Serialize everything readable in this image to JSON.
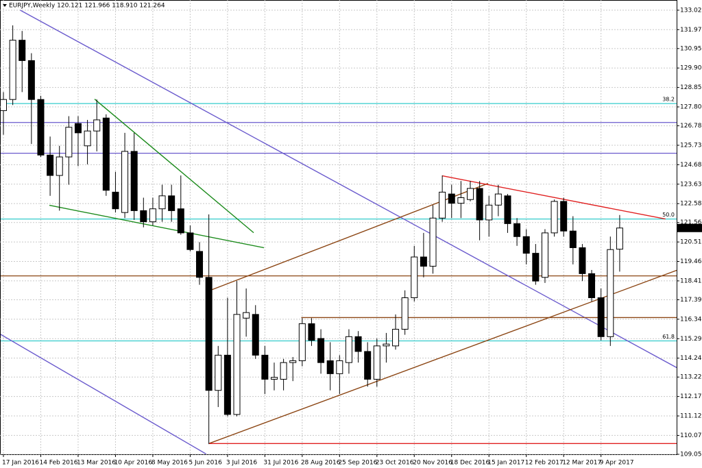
{
  "chart_data": {
    "type": "candlestick",
    "title": "EURJPY,Weekly 120.121 121.966 118.910 121.264",
    "categories": [
      "17 Jan 2016",
      null,
      null,
      null,
      "14 Feb 2016",
      null,
      null,
      null,
      "13 Mar 2016",
      null,
      null,
      null,
      "10 Apr 2016",
      null,
      null,
      null,
      "8 May 2016",
      null,
      null,
      null,
      "5 Jun 2016",
      null,
      null,
      null,
      "3 Jul 2016",
      null,
      null,
      null,
      "31 Jul 2016",
      null,
      null,
      null,
      "28 Aug 2016",
      null,
      null,
      null,
      "25 Sep 2016",
      null,
      null,
      null,
      "23 Oct 2016",
      null,
      null,
      null,
      "20 Nov 2016",
      null,
      null,
      null,
      "18 Dec 2016",
      null,
      null,
      null,
      "15 Jan 2017",
      null,
      null,
      null,
      "12 Feb 2017",
      null,
      null,
      null,
      "12 Mar 2017",
      null,
      null,
      null,
      "9 Apr 2017",
      null,
      null
    ],
    "open": [
      127.6,
      128.2,
      131.4,
      130.3,
      128.2,
      125.2,
      124.1,
      125.1,
      126.9,
      125.7,
      126.5,
      127.2,
      123.2,
      122.1,
      125.4,
      122.2,
      121.6,
      122.3,
      123.0,
      122.3,
      121.0,
      120.0,
      118.6,
      112.5,
      114.4,
      111.2,
      116.4,
      116.6,
      114.4,
      113.1,
      113.1,
      114.0,
      114.1,
      116.1,
      115.3,
      114.1,
      113.4,
      114.0,
      115.4,
      114.6,
      113.1,
      114.9,
      114.9,
      115.8,
      117.5,
      119.7,
      119.2,
      121.8,
      123.1,
      122.6,
      122.8,
      123.4,
      121.7,
      122.5,
      123.0,
      121.5,
      120.8,
      119.9,
      118.6,
      121.0,
      122.7,
      121.1,
      120.2,
      118.8,
      117.5,
      115.4,
      120.121
    ],
    "high": [
      128.6,
      132.2,
      131.9,
      130.7,
      128.4,
      126.2,
      125.7,
      127.3,
      127.3,
      127.1,
      128.2,
      127.4,
      124.3,
      126.4,
      126.4,
      122.9,
      122.9,
      123.6,
      123.6,
      124.1,
      121.4,
      120.5,
      122.0,
      114.9,
      117.5,
      118.4,
      118.0,
      117.1,
      114.9,
      114.0,
      114.2,
      114.3,
      116.4,
      116.4,
      115.8,
      115.1,
      114.4,
      115.8,
      115.7,
      115.1,
      115.3,
      115.6,
      116.6,
      117.9,
      120.3,
      121.0,
      122.5,
      124.1,
      123.6,
      123.8,
      123.8,
      123.8,
      123.0,
      123.6,
      123.1,
      121.8,
      121.2,
      120.4,
      121.2,
      122.8,
      122.9,
      121.9,
      120.4,
      119.0,
      118.0,
      120.8,
      121.966
    ],
    "low": [
      126.3,
      127.9,
      128.6,
      125.8,
      125.1,
      123.0,
      122.2,
      123.6,
      124.6,
      124.7,
      125.4,
      123.0,
      122.1,
      121.8,
      121.7,
      121.3,
      121.4,
      121.6,
      121.6,
      120.9,
      120.0,
      118.2,
      109.6,
      111.6,
      111.1,
      111.1,
      115.4,
      114.2,
      112.3,
      112.5,
      112.5,
      113.0,
      113.8,
      114.9,
      113.4,
      112.5,
      112.3,
      113.4,
      114.0,
      112.7,
      112.7,
      114.0,
      114.7,
      115.5,
      117.3,
      118.6,
      118.8,
      121.6,
      121.8,
      121.8,
      122.7,
      120.6,
      120.8,
      121.9,
      121.0,
      120.3,
      119.3,
      118.2,
      118.3,
      120.8,
      120.8,
      119.3,
      118.4,
      117.3,
      115.2,
      114.9,
      118.91
    ],
    "close": [
      128.2,
      131.4,
      130.3,
      128.2,
      125.2,
      124.1,
      125.1,
      126.7,
      126.4,
      126.5,
      127.1,
      123.3,
      122.3,
      125.4,
      122.2,
      121.6,
      122.3,
      123.0,
      122.2,
      121.0,
      120.1,
      118.6,
      112.5,
      114.4,
      111.2,
      116.6,
      116.7,
      114.4,
      113.1,
      113.2,
      114.0,
      114.1,
      116.1,
      115.2,
      114.0,
      113.4,
      114.1,
      115.4,
      114.6,
      113.1,
      114.9,
      115.0,
      115.8,
      117.5,
      119.7,
      119.2,
      121.8,
      123.2,
      122.6,
      122.9,
      123.4,
      121.7,
      122.5,
      123.1,
      121.5,
      120.8,
      119.9,
      118.4,
      121.0,
      122.7,
      121.1,
      120.2,
      118.8,
      117.5,
      115.4,
      120.1,
      121.264
    ],
    "current_price": 121.264,
    "ylim": [
      109.05,
      133.57
    ],
    "yticks": [
      {
        "value": 133.02,
        "label": "133.020"
      },
      {
        "value": 131.97,
        "label": "131.970"
      },
      {
        "value": 130.95,
        "label": "130.950"
      },
      {
        "value": 129.9,
        "label": "129.900"
      },
      {
        "value": 128.85,
        "label": "128.850"
      },
      {
        "value": 127.8,
        "label": "127.800"
      },
      {
        "value": 126.78,
        "label": "126.780"
      },
      {
        "value": 125.73,
        "label": "125.730"
      },
      {
        "value": 124.68,
        "label": "124.680"
      },
      {
        "value": 123.63,
        "label": "123.630"
      },
      {
        "value": 122.58,
        "label": "122.580"
      },
      {
        "value": 121.56,
        "label": "121.560"
      },
      {
        "value": 120.51,
        "label": "120.510"
      },
      {
        "value": 119.46,
        "label": "119.460"
      },
      {
        "value": 118.41,
        "label": "118.410"
      },
      {
        "value": 117.39,
        "label": "117.390"
      },
      {
        "value": 116.34,
        "label": "116.340"
      },
      {
        "value": 115.29,
        "label": "115.290"
      },
      {
        "value": 114.24,
        "label": "114.240"
      },
      {
        "value": 113.22,
        "label": "113.220"
      },
      {
        "value": 112.17,
        "label": "112.170"
      },
      {
        "value": 111.12,
        "label": "111.120"
      },
      {
        "value": 110.07,
        "label": "110.070"
      },
      {
        "value": 109.05,
        "label": "109.050"
      }
    ],
    "grid": true,
    "hlines": [
      {
        "value": 127.98,
        "color": "#33cccc",
        "label": "38.2"
      },
      {
        "value": 121.75,
        "color": "#33cccc",
        "label": "50.0"
      },
      {
        "value": 115.17,
        "color": "#33cccc",
        "label": "61.8"
      },
      {
        "value": 126.96,
        "color": "#6a5acd"
      },
      {
        "value": 125.3,
        "color": "#6a5acd"
      },
      {
        "value": 118.68,
        "color": "#8b4513"
      }
    ],
    "lines": [
      {
        "color": "#6a5acd",
        "x": [
          1.8,
          72.1
        ],
        "y": [
          133.02,
          113.73
        ]
      },
      {
        "color": "#6a5acd",
        "x": [
          -0.37,
          21.7
        ],
        "y": [
          115.54,
          109.07
        ]
      },
      {
        "color": "#1a8a1a",
        "x": [
          9.77,
          26.8
        ],
        "y": [
          128.22,
          121.01
        ]
      },
      {
        "color": "#1a8a1a",
        "x": [
          4.92,
          27.9
        ],
        "y": [
          122.49,
          120.2
        ]
      },
      {
        "color": "#8b4513",
        "x": [
          22.0,
          72.1
        ],
        "y": [
          109.63,
          118.98
        ]
      },
      {
        "color": "#8b4513",
        "x": [
          22.0,
          51.9
        ],
        "y": [
          117.87,
          123.67
        ]
      },
      {
        "color": "#e02020",
        "x": [
          47.0,
          70.9
        ],
        "y": [
          124.08,
          121.75
        ]
      },
      {
        "color": "#e02020",
        "x": [
          22.0,
          72.5
        ],
        "y": [
          109.63,
          109.63
        ]
      },
      {
        "color": "#8b4513",
        "x": [
          31.9,
          72.5
        ],
        "y": [
          116.43,
          116.43
        ]
      }
    ]
  }
}
